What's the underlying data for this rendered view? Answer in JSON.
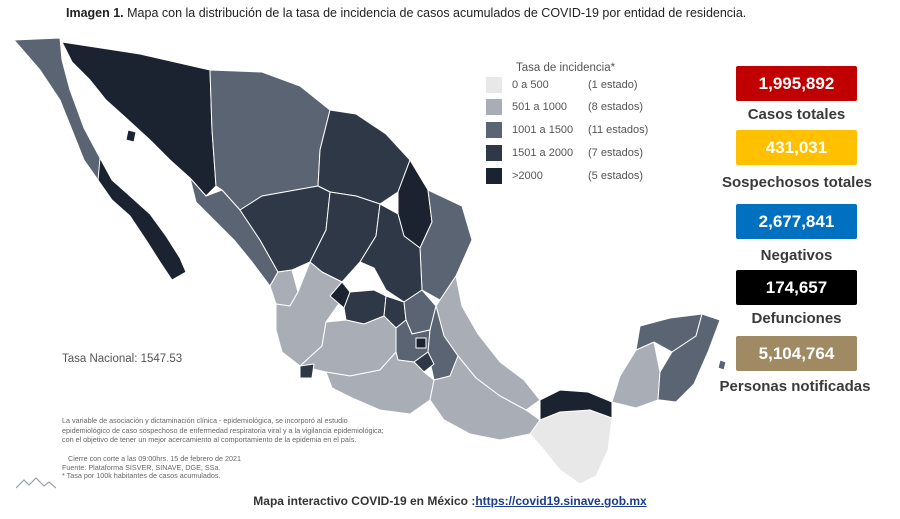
{
  "title": {
    "prefix": "Imagen 1.",
    "text": " Mapa con la distribución de la tasa de incidencia de casos acumulados de COVID-19 por entidad de residencia."
  },
  "legend": {
    "title": "Tasa de incidencia*",
    "items": [
      {
        "range": "0 a   500",
        "count": "(1 estado)",
        "color": "#e8e8e8"
      },
      {
        "range": "501 a  1000",
        "count": "(8 estados)",
        "color": "#a9adb6"
      },
      {
        "range": "1001 a  1500",
        "count": "(11 estados)",
        "color": "#5a6472"
      },
      {
        "range": "1501 a  2000",
        "count": "(7 estados)",
        "color": "#2f3846"
      },
      {
        "range": ">2000",
        "count": "(5 estados)",
        "color": "#1b2230"
      }
    ]
  },
  "stats": [
    {
      "value": "1,995,892",
      "label": "Casos totales",
      "color": "#c00000"
    },
    {
      "value": "431,031",
      "label": "Sospechosos totales",
      "color": "#ffc000"
    },
    {
      "value": "2,677,841",
      "label": "Negativos",
      "color": "#0070c0"
    },
    {
      "value": "174,657",
      "label": "Defunciones",
      "color": "#000000"
    },
    {
      "value": "5,104,764",
      "label": "Personas notificadas",
      "color": "#a08a64"
    }
  ],
  "tasa_nacional": "Tasa Nacional: 1547.53",
  "notes": {
    "line1": "La variable de asociación y dictaminación clínica - epidemiológica, se incorporó al estudio",
    "line2": "epidemiológico de caso sospechoso de enfermedad respiratoria viral y a la vigilancia epidemiológica;",
    "line3": "con el objetivo de tener un mejor acercamiento al comportamiento de la epidemia en el país.",
    "cierre": "Cierre con corte a las 09:00hrs. 15 de febrero de 2021",
    "fuente": "Fuente: Plataforma SISVER, SINAVE, DGE, SSa.",
    "tasa_note": "* Tasa por 100k habitantes de casos acumulados."
  },
  "footer": {
    "text": "Mapa interactivo COVID-19 en México :",
    "link": "https://covid19.sinave.gob.mx"
  }
}
